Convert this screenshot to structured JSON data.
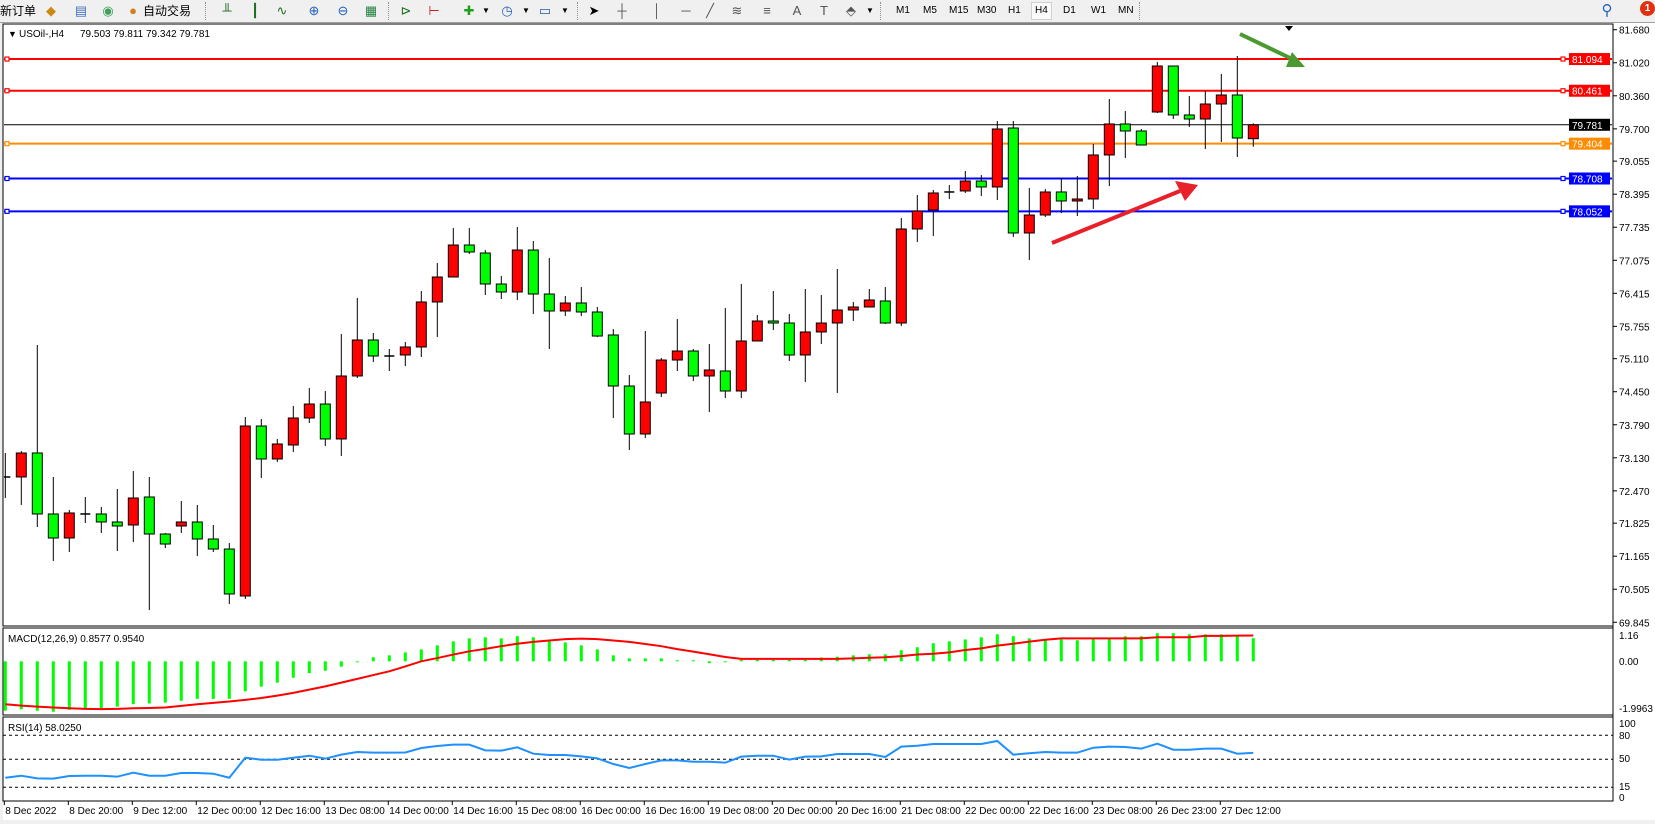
{
  "toolbar": {
    "new_order": "新订单",
    "auto_trading": "自动交易",
    "timeframes": [
      "M1",
      "M5",
      "M15",
      "M30",
      "H1",
      "H4",
      "D1",
      "W1",
      "MN"
    ],
    "active_timeframe": "H4",
    "notification_count": "1",
    "icons": [
      "book-icon",
      "monitor-icon",
      "signal-icon",
      "auto-trading-icon",
      "bar-chart-icon",
      "candlestick-icon",
      "line-chart-icon",
      "zoom-in-icon",
      "zoom-out-icon",
      "tile-windows-icon",
      "auto-scroll-icon",
      "chart-shift-icon",
      "indicators-icon",
      "periods-icon",
      "templates-icon",
      "cursor-icon",
      "crosshair-icon",
      "vertical-line-icon",
      "horizontal-line-icon",
      "trendline-icon",
      "fibonacci-icon",
      "fibonacci-fan-icon",
      "text-icon",
      "text-label-icon",
      "arrows-icon",
      "search-icon",
      "notification-icon"
    ]
  },
  "colors": {
    "bull_candle": "#ff0000",
    "bear_candle": "#00ff00",
    "macd_histogram": "#00ff00",
    "macd_signal": "#ff0000",
    "rsi_line": "#1e90ff",
    "resistance": "#ff0000",
    "pivot": "#ff8c00",
    "support": "#0000ff",
    "arrow_up": "#e8202a",
    "arrow_down": "#4a9a30"
  },
  "chart_data": [
    {
      "type": "candlestick",
      "symbol_label": "USOil-,H4",
      "ohlc_header": "79.503 79.811 79.342 79.781",
      "y_ticks": [
        "81.680",
        "81.020",
        "80.360",
        "79.700",
        "79.055",
        "78.395",
        "77.735",
        "77.075",
        "76.415",
        "75.755",
        "75.110",
        "74.450",
        "73.790",
        "73.130",
        "72.470",
        "71.825",
        "71.165",
        "70.505",
        "69.845"
      ],
      "ylim": [
        69.845,
        81.68
      ],
      "x_tick_labels": [
        "8 Dec 2022",
        "8 Dec 20:00",
        "9 Dec 12:00",
        "12 Dec 00:00",
        "12 Dec 16:00",
        "13 Dec 08:00",
        "14 Dec 00:00",
        "14 Dec 16:00",
        "15 Dec 08:00",
        "16 Dec 00:00",
        "16 Dec 16:00",
        "19 Dec 08:00",
        "20 Dec 00:00",
        "20 Dec 16:00",
        "21 Dec 08:00",
        "22 Dec 00:00",
        "22 Dec 16:00",
        "23 Dec 08:00",
        "26 Dec 23:00",
        "27 Dec 12:00"
      ],
      "horizontal_lines": [
        {
          "price": 81.094,
          "label": "81.094",
          "role": "resistance"
        },
        {
          "price": 80.461,
          "label": "80.461",
          "role": "resistance"
        },
        {
          "price": 79.781,
          "label": "79.781",
          "role": "current-price"
        },
        {
          "price": 79.404,
          "label": "79.404",
          "role": "pivot"
        },
        {
          "price": 78.708,
          "label": "78.708",
          "role": "support"
        },
        {
          "price": 78.052,
          "label": "78.052",
          "role": "support"
        }
      ],
      "candles_ohlc": [
        [
          72.747,
          73.226,
          72.327,
          72.747
        ],
        [
          72.747,
          73.266,
          72.188,
          73.226
        ],
        [
          73.226,
          75.383,
          71.748,
          72.008
        ],
        [
          72.008,
          72.747,
          71.069,
          71.528
        ],
        [
          71.528,
          72.088,
          71.248,
          72.028
        ],
        [
          72.008,
          72.347,
          71.828,
          72.008
        ],
        [
          72.008,
          72.148,
          71.628,
          71.848
        ],
        [
          71.848,
          72.507,
          71.268,
          71.768
        ],
        [
          71.788,
          72.866,
          71.448,
          72.327
        ],
        [
          72.347,
          72.747,
          70.09,
          71.608
        ],
        [
          71.608,
          71.628,
          71.328,
          71.408
        ],
        [
          71.768,
          72.267,
          71.628,
          71.848
        ],
        [
          71.848,
          72.188,
          71.169,
          71.508
        ],
        [
          71.508,
          71.788,
          71.248,
          71.308
        ],
        [
          71.308,
          71.428,
          70.21,
          70.41
        ],
        [
          70.37,
          73.945,
          70.31,
          73.765
        ],
        [
          73.765,
          73.905,
          72.727,
          73.106
        ],
        [
          73.106,
          73.506,
          73.046,
          73.406
        ],
        [
          73.386,
          74.165,
          73.246,
          73.925
        ],
        [
          73.925,
          74.524,
          73.825,
          74.204
        ],
        [
          74.204,
          74.464,
          73.366,
          73.506
        ],
        [
          73.506,
          75.602,
          73.166,
          74.764
        ],
        [
          74.764,
          76.322,
          74.724,
          75.483
        ],
        [
          75.483,
          75.623,
          75.043,
          75.163
        ],
        [
          75.163,
          75.303,
          74.863,
          75.163
        ],
        [
          75.183,
          75.443,
          74.963,
          75.343
        ],
        [
          75.343,
          76.461,
          75.143,
          76.242
        ],
        [
          76.242,
          77.021,
          75.543,
          76.741
        ],
        [
          76.741,
          77.72,
          76.741,
          77.38
        ],
        [
          77.38,
          77.72,
          77.2,
          77.24
        ],
        [
          77.22,
          77.28,
          76.381,
          76.601
        ],
        [
          76.601,
          76.761,
          76.301,
          76.441
        ],
        [
          76.441,
          77.74,
          76.281,
          77.28
        ],
        [
          77.28,
          77.46,
          76.002,
          76.401
        ],
        [
          76.401,
          77.12,
          75.303,
          76.062
        ],
        [
          76.062,
          76.361,
          75.962,
          76.222
        ],
        [
          76.222,
          76.541,
          75.962,
          76.042
        ],
        [
          76.042,
          76.142,
          75.543,
          75.562
        ],
        [
          75.583,
          75.702,
          73.925,
          74.564
        ],
        [
          74.564,
          74.784,
          73.286,
          73.605
        ],
        [
          73.605,
          75.662,
          73.526,
          74.245
        ],
        [
          74.424,
          75.123,
          74.344,
          75.083
        ],
        [
          75.083,
          75.902,
          74.863,
          75.263
        ],
        [
          75.263,
          75.303,
          74.664,
          74.764
        ],
        [
          74.764,
          75.403,
          74.045,
          74.884
        ],
        [
          74.864,
          76.122,
          74.324,
          74.464
        ],
        [
          74.464,
          76.601,
          74.324,
          75.463
        ],
        [
          75.463,
          75.982,
          75.463,
          75.862
        ],
        [
          75.862,
          76.461,
          75.682,
          75.822
        ],
        [
          75.822,
          76.002,
          75.063,
          75.183
        ],
        [
          75.183,
          76.501,
          74.644,
          75.643
        ],
        [
          75.643,
          76.381,
          75.403,
          75.822
        ],
        [
          75.822,
          76.901,
          74.424,
          76.082
        ],
        [
          76.082,
          76.242,
          75.862,
          76.142
        ],
        [
          76.142,
          76.501,
          76.142,
          76.282
        ],
        [
          76.262,
          76.541,
          75.802,
          75.822
        ],
        [
          75.822,
          77.919,
          75.762,
          77.7
        ],
        [
          77.7,
          78.379,
          77.44,
          78.059
        ],
        [
          78.079,
          78.479,
          77.56,
          78.419
        ],
        [
          78.419,
          78.578,
          78.299,
          78.439
        ],
        [
          78.459,
          78.858,
          78.419,
          78.658
        ],
        [
          78.658,
          78.778,
          78.359,
          78.539
        ],
        [
          78.539,
          79.857,
          78.279,
          79.697
        ],
        [
          79.717,
          79.857,
          77.54,
          77.62
        ],
        [
          77.62,
          78.519,
          77.08,
          77.979
        ],
        [
          77.979,
          78.499,
          77.939,
          78.439
        ],
        [
          78.439,
          78.718,
          78.019,
          78.259
        ],
        [
          78.259,
          78.758,
          77.959,
          78.299
        ],
        [
          78.299,
          79.398,
          78.099,
          79.178
        ],
        [
          79.178,
          80.296,
          78.558,
          79.797
        ],
        [
          79.797,
          80.056,
          79.118,
          79.657
        ],
        [
          79.657,
          79.697,
          79.377,
          79.377
        ],
        [
          80.036,
          81.035,
          80.016,
          80.955
        ],
        [
          80.955,
          80.955,
          79.896,
          79.977
        ],
        [
          79.977,
          80.356,
          79.737,
          79.896
        ],
        [
          79.896,
          80.456,
          79.297,
          80.196
        ],
        [
          80.196,
          80.795,
          79.437,
          80.376
        ],
        [
          80.376,
          81.155,
          79.138,
          79.517
        ],
        [
          79.503,
          79.811,
          79.342,
          79.781
        ]
      ]
    },
    {
      "type": "bar",
      "indicator_label": "MACD(12,26,9) 0.8577 0.9540",
      "y_ticks": [
        "1.16",
        "0.00",
        "-1.9963"
      ],
      "ylim": [
        -1.9963,
        1.16
      ],
      "histogram": [
        -1.83,
        -1.78,
        -1.83,
        -1.87,
        -1.8,
        -1.78,
        -1.74,
        -1.68,
        -1.59,
        -1.56,
        -1.53,
        -1.46,
        -1.39,
        -1.39,
        -1.39,
        -1.11,
        -0.94,
        -0.79,
        -0.61,
        -0.44,
        -0.35,
        -0.2,
        -0.01,
        0.15,
        0.22,
        0.33,
        0.44,
        0.59,
        0.74,
        0.85,
        0.89,
        0.85,
        0.93,
        0.89,
        0.74,
        0.7,
        0.59,
        0.44,
        0.22,
        0.11,
        0.11,
        0.11,
        0.04,
        0.04,
        -0.07,
        -0.02,
        0.05,
        0.05,
        0.05,
        0.05,
        0.05,
        0.14,
        0.17,
        0.22,
        0.26,
        0.26,
        0.41,
        0.52,
        0.67,
        0.74,
        0.81,
        0.89,
        1.0,
        0.93,
        0.85,
        0.81,
        0.81,
        0.78,
        0.85,
        0.85,
        0.93,
        0.93,
        1.04,
        1.04,
        1.0,
        1.0,
        1.0,
        0.96,
        0.8577
      ],
      "signal": [
        -1.59,
        -1.64,
        -1.68,
        -1.71,
        -1.74,
        -1.76,
        -1.77,
        -1.76,
        -1.74,
        -1.73,
        -1.71,
        -1.65,
        -1.59,
        -1.54,
        -1.49,
        -1.43,
        -1.36,
        -1.27,
        -1.17,
        -1.05,
        -0.93,
        -0.79,
        -0.65,
        -0.51,
        -0.37,
        -0.19,
        0.0,
        0.12,
        0.25,
        0.37,
        0.46,
        0.56,
        0.65,
        0.72,
        0.77,
        0.82,
        0.84,
        0.82,
        0.77,
        0.72,
        0.64,
        0.56,
        0.45,
        0.36,
        0.26,
        0.16,
        0.09,
        0.09,
        0.09,
        0.09,
        0.09,
        0.09,
        0.09,
        0.11,
        0.13,
        0.15,
        0.19,
        0.25,
        0.28,
        0.33,
        0.42,
        0.48,
        0.58,
        0.65,
        0.73,
        0.8,
        0.85,
        0.85,
        0.85,
        0.85,
        0.85,
        0.85,
        0.89,
        0.89,
        0.89,
        0.94,
        0.94,
        0.95,
        0.954
      ]
    },
    {
      "type": "line",
      "indicator_label": "RSI(14) 58.0250",
      "y_ticks": [
        "100",
        "80",
        "50",
        "15",
        "0"
      ],
      "levels": [
        80,
        50,
        15
      ],
      "ylim": [
        0,
        100
      ],
      "values": [
        27.0,
        29.5,
        26.2,
        25.8,
        29.1,
        29.5,
        29.5,
        28.3,
        33.3,
        29.5,
        29.5,
        32.9,
        32.9,
        32.0,
        27.0,
        52.0,
        49.5,
        49.5,
        52.0,
        54.5,
        50.8,
        55.8,
        59.1,
        58.3,
        58.3,
        58.5,
        64.1,
        66.6,
        68.3,
        68.3,
        61.2,
        60.8,
        65.0,
        57.0,
        55.4,
        55.4,
        53.7,
        51.2,
        44.1,
        39.1,
        44.1,
        48.7,
        48.7,
        47.0,
        47.0,
        45.8,
        53.3,
        54.5,
        54.5,
        49.6,
        53.3,
        53.7,
        56.6,
        56.6,
        56.6,
        52.9,
        65.8,
        67.0,
        69.1,
        69.1,
        69.1,
        69.1,
        72.9,
        55.8,
        57.5,
        59.1,
        58.3,
        58.3,
        64.5,
        65.8,
        65.4,
        63.3,
        69.5,
        62.0,
        62.0,
        63.3,
        63.3,
        57.0,
        58.025
      ]
    }
  ]
}
